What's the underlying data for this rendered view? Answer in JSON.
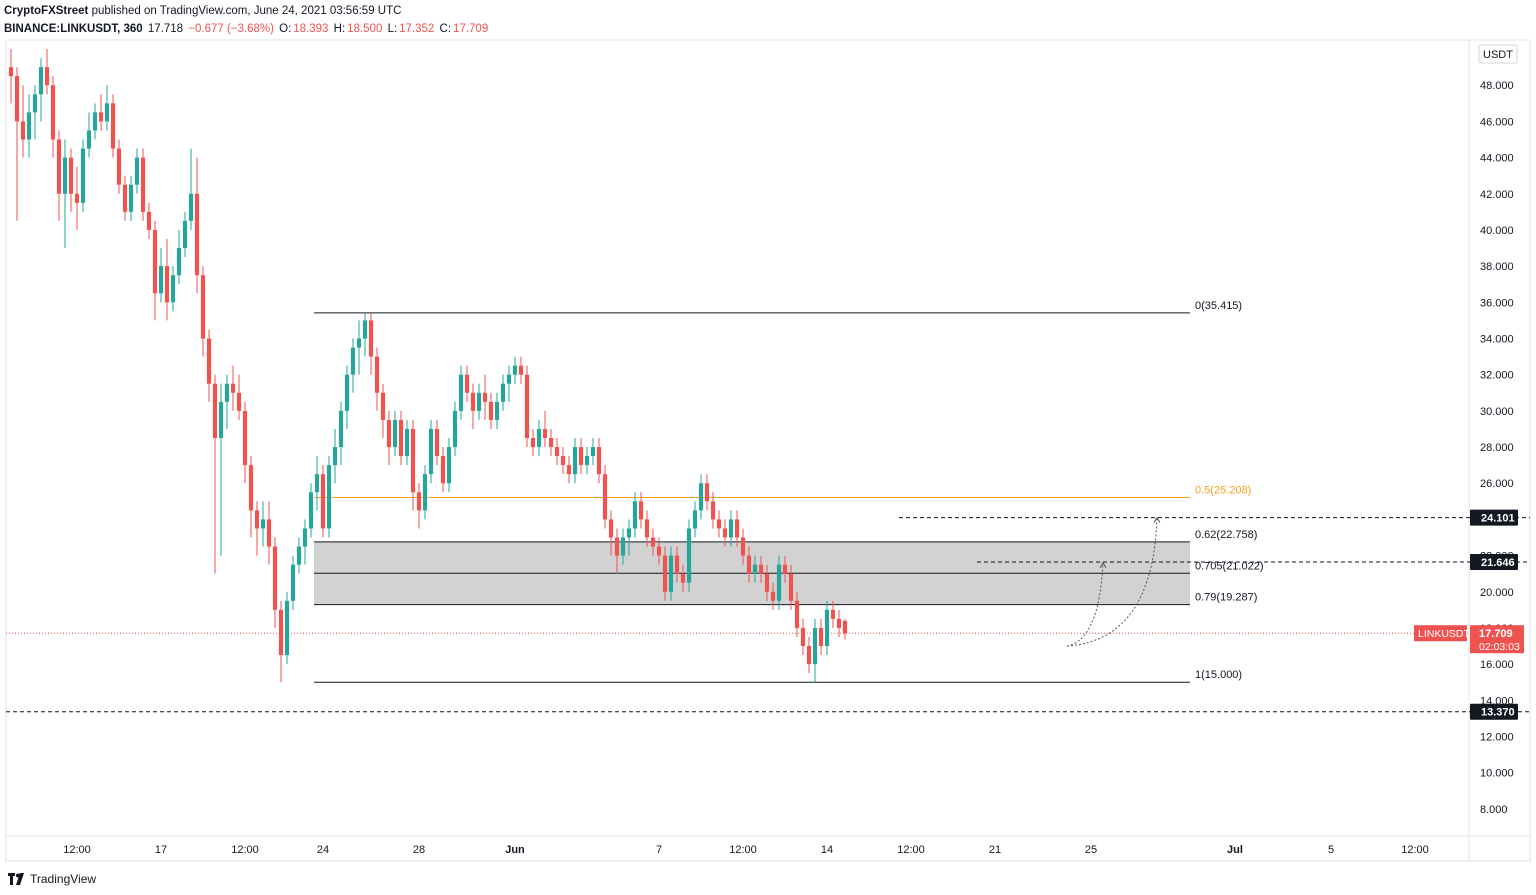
{
  "header": {
    "author": "CryptoFXStreet",
    "published": "published on TradingView.com, June 24, 2021 03:56:59 UTC",
    "symbol": "BINANCE:LINKUSDT, 360",
    "price": "17.718",
    "change": "−0.677 (−3.68%)",
    "open_label": "O:",
    "open": "18.393",
    "high_label": "H:",
    "high": "18.500",
    "low_label": "L:",
    "low": "17.352",
    "close_label": "C:",
    "close": "17.709"
  },
  "footer": {
    "brand": "TradingView",
    "logo_icon": "tradingview-logo-icon"
  },
  "colors": {
    "up": "#26a69a",
    "down": "#ef5350",
    "fib_orange": "#f7a21b",
    "zone_fill": "#d0d0d0",
    "line": "#131722",
    "tag_bg": "#131722",
    "last_tag": "#ef5350"
  },
  "chart_data": {
    "type": "candlestick",
    "title": "",
    "currency": "USDT",
    "ylim": [
      6.5,
      50.5
    ],
    "y_ticks": [
      "8.000",
      "10.000",
      "12.000",
      "14.000",
      "16.000",
      "18.000",
      "20.000",
      "22.000",
      "24.000",
      "26.000",
      "28.000",
      "30.000",
      "32.000",
      "34.000",
      "36.000",
      "38.000",
      "40.000",
      "42.000",
      "44.000",
      "46.000",
      "48.000"
    ],
    "x_ticks": [
      {
        "i": 11,
        "label": "12:00"
      },
      {
        "i": 25,
        "label": "17"
      },
      {
        "i": 39,
        "label": "12:00"
      },
      {
        "i": 52,
        "label": "24"
      },
      {
        "i": 68,
        "label": "28"
      },
      {
        "i": 84,
        "label": "Jun"
      },
      {
        "i": 108,
        "label": "7"
      },
      {
        "i": 122,
        "label": "12:00"
      },
      {
        "i": 136,
        "label": "14"
      },
      {
        "i": 150,
        "label": "12:00"
      },
      {
        "i": 164,
        "label": "21"
      },
      {
        "i": 180,
        "label": "25"
      },
      {
        "i": 204,
        "label": "Jul"
      },
      {
        "i": 220,
        "label": "5"
      },
      {
        "i": 234,
        "label": "12:00"
      }
    ],
    "candles": [
      [
        49.0,
        50.0,
        47.0,
        48.5
      ],
      [
        48.5,
        49.0,
        40.5,
        46.0
      ],
      [
        46.0,
        48.0,
        44.0,
        45.0
      ],
      [
        45.0,
        47.5,
        44.0,
        46.5
      ],
      [
        46.5,
        48.0,
        45.0,
        47.5
      ],
      [
        47.5,
        49.5,
        46.0,
        49.0
      ],
      [
        49.0,
        50.0,
        47.5,
        48.0
      ],
      [
        48.0,
        48.5,
        44.0,
        45.0
      ],
      [
        45.0,
        45.5,
        40.5,
        42.0
      ],
      [
        42.0,
        45.0,
        39.0,
        44.0
      ],
      [
        44.0,
        44.5,
        41.0,
        42.0
      ],
      [
        42.0,
        43.5,
        40.0,
        41.5
      ],
      [
        41.5,
        45.0,
        41.0,
        44.5
      ],
      [
        44.5,
        46.5,
        44.0,
        45.5
      ],
      [
        45.5,
        47.0,
        45.0,
        46.5
      ],
      [
        46.5,
        47.5,
        45.5,
        46.0
      ],
      [
        46.0,
        48.0,
        45.5,
        47.0
      ],
      [
        47.0,
        47.5,
        44.0,
        44.5
      ],
      [
        44.5,
        45.0,
        42.0,
        42.5
      ],
      [
        42.5,
        43.0,
        40.5,
        41.0
      ],
      [
        41.0,
        43.0,
        40.5,
        42.5
      ],
      [
        42.5,
        44.5,
        42.0,
        44.0
      ],
      [
        44.0,
        44.5,
        40.5,
        41.0
      ],
      [
        41.0,
        41.5,
        39.5,
        40.0
      ],
      [
        40.0,
        40.5,
        35.0,
        36.5
      ],
      [
        36.5,
        39.0,
        36.0,
        38.0
      ],
      [
        38.0,
        39.5,
        35.0,
        36.0
      ],
      [
        36.0,
        38.0,
        35.5,
        37.5
      ],
      [
        37.5,
        40.0,
        37.0,
        39.0
      ],
      [
        39.0,
        41.0,
        38.5,
        40.5
      ],
      [
        40.5,
        44.5,
        40.0,
        42.0
      ],
      [
        42.0,
        44.0,
        36.5,
        37.5
      ],
      [
        37.5,
        38.0,
        33.0,
        34.0
      ],
      [
        34.0,
        34.5,
        30.5,
        31.5
      ],
      [
        31.5,
        32.0,
        21.0,
        28.5
      ],
      [
        28.5,
        31.5,
        22.0,
        30.5
      ],
      [
        30.5,
        32.0,
        29.0,
        31.5
      ],
      [
        31.5,
        32.5,
        30.0,
        31.0
      ],
      [
        31.0,
        32.0,
        29.5,
        30.0
      ],
      [
        30.0,
        30.5,
        26.0,
        27.0
      ],
      [
        27.0,
        27.5,
        23.0,
        24.5
      ],
      [
        24.5,
        25.0,
        22.0,
        23.5
      ],
      [
        23.5,
        25.0,
        22.5,
        24.0
      ],
      [
        24.0,
        25.0,
        21.5,
        22.5
      ],
      [
        22.5,
        23.0,
        18.0,
        19.0
      ],
      [
        19.0,
        19.5,
        15.0,
        16.5
      ],
      [
        16.5,
        20.0,
        16.0,
        19.5
      ],
      [
        19.5,
        22.0,
        19.0,
        21.5
      ],
      [
        21.5,
        23.0,
        21.0,
        22.5
      ],
      [
        22.5,
        24.0,
        21.5,
        23.5
      ],
      [
        23.5,
        26.0,
        23.0,
        25.5
      ],
      [
        25.5,
        27.5,
        24.5,
        26.5
      ],
      [
        26.5,
        27.0,
        23.0,
        23.5
      ],
      [
        23.5,
        27.5,
        23.0,
        27.0
      ],
      [
        27.0,
        29.0,
        26.0,
        28.0
      ],
      [
        28.0,
        30.5,
        27.0,
        30.0
      ],
      [
        30.0,
        32.5,
        29.0,
        32.0
      ],
      [
        32.0,
        34.0,
        31.0,
        33.5
      ],
      [
        33.5,
        35.0,
        32.0,
        34.0
      ],
      [
        34.0,
        35.4,
        33.0,
        35.0
      ],
      [
        35.0,
        35.4,
        32.0,
        33.0
      ],
      [
        33.0,
        33.5,
        30.0,
        31.0
      ],
      [
        31.0,
        31.5,
        28.5,
        29.5
      ],
      [
        29.5,
        30.0,
        27.0,
        28.0
      ],
      [
        28.0,
        30.0,
        27.5,
        29.5
      ],
      [
        29.5,
        30.0,
        27.0,
        27.5
      ],
      [
        27.5,
        29.5,
        27.0,
        29.0
      ],
      [
        29.0,
        29.5,
        24.5,
        25.5
      ],
      [
        25.5,
        26.0,
        23.5,
        24.5
      ],
      [
        24.5,
        27.0,
        24.0,
        26.5
      ],
      [
        26.5,
        29.5,
        26.0,
        29.0
      ],
      [
        29.0,
        29.5,
        27.0,
        27.5
      ],
      [
        27.5,
        28.0,
        25.5,
        26.0
      ],
      [
        26.0,
        28.5,
        25.5,
        28.0
      ],
      [
        28.0,
        30.5,
        27.5,
        30.0
      ],
      [
        30.0,
        32.5,
        29.5,
        32.0
      ],
      [
        32.0,
        32.5,
        30.5,
        31.0
      ],
      [
        31.0,
        31.5,
        29.0,
        30.0
      ],
      [
        30.0,
        31.5,
        29.5,
        31.0
      ],
      [
        31.0,
        32.0,
        29.5,
        30.5
      ],
      [
        30.5,
        31.0,
        29.0,
        29.5
      ],
      [
        29.5,
        31.0,
        29.0,
        30.5
      ],
      [
        30.5,
        32.0,
        30.0,
        31.5
      ],
      [
        31.5,
        32.5,
        30.5,
        32.0
      ],
      [
        32.0,
        33.0,
        31.5,
        32.5
      ],
      [
        32.5,
        33.0,
        31.5,
        32.0
      ],
      [
        32.0,
        32.5,
        28.0,
        28.5
      ],
      [
        28.5,
        29.0,
        27.5,
        28.0
      ],
      [
        28.0,
        29.5,
        27.5,
        29.0
      ],
      [
        29.0,
        30.0,
        28.0,
        28.5
      ],
      [
        28.5,
        29.0,
        27.5,
        28.0
      ],
      [
        28.0,
        28.5,
        27.0,
        27.5
      ],
      [
        27.5,
        28.0,
        26.5,
        27.0
      ],
      [
        27.0,
        27.5,
        26.0,
        26.5
      ],
      [
        26.5,
        28.5,
        26.0,
        28.0
      ],
      [
        28.0,
        28.5,
        26.5,
        27.0
      ],
      [
        27.0,
        28.0,
        26.5,
        27.5
      ],
      [
        27.5,
        28.5,
        27.0,
        28.0
      ],
      [
        28.0,
        28.5,
        26.0,
        26.5
      ],
      [
        26.5,
        27.0,
        23.5,
        24.0
      ],
      [
        24.0,
        24.5,
        22.0,
        23.0
      ],
      [
        23.0,
        23.5,
        21.0,
        22.0
      ],
      [
        22.0,
        23.5,
        21.5,
        23.0
      ],
      [
        23.0,
        24.0,
        22.0,
        23.5
      ],
      [
        23.5,
        25.5,
        23.0,
        25.0
      ],
      [
        25.0,
        25.5,
        23.5,
        24.0
      ],
      [
        24.0,
        24.5,
        22.5,
        23.0
      ],
      [
        23.0,
        23.5,
        22.0,
        22.5
      ],
      [
        22.5,
        23.0,
        21.5,
        22.0
      ],
      [
        22.0,
        22.5,
        19.5,
        20.0
      ],
      [
        20.0,
        22.5,
        19.5,
        22.0
      ],
      [
        22.0,
        22.5,
        20.5,
        21.0
      ],
      [
        21.0,
        21.5,
        20.0,
        20.5
      ],
      [
        20.5,
        24.0,
        20.0,
        23.5
      ],
      [
        23.5,
        25.0,
        23.0,
        24.5
      ],
      [
        24.5,
        26.5,
        24.0,
        26.0
      ],
      [
        26.0,
        26.5,
        24.5,
        25.0
      ],
      [
        25.0,
        25.5,
        23.5,
        24.0
      ],
      [
        24.0,
        24.5,
        23.0,
        23.5
      ],
      [
        23.5,
        24.0,
        22.5,
        23.0
      ],
      [
        23.0,
        24.5,
        22.5,
        24.0
      ],
      [
        24.0,
        24.5,
        22.5,
        23.0
      ],
      [
        23.0,
        23.5,
        21.5,
        22.0
      ],
      [
        22.0,
        22.5,
        20.5,
        21.0
      ],
      [
        21.0,
        22.0,
        20.5,
        21.5
      ],
      [
        21.5,
        22.0,
        20.5,
        21.0
      ],
      [
        21.0,
        21.5,
        19.5,
        20.0
      ],
      [
        20.0,
        20.5,
        19.0,
        19.5
      ],
      [
        19.5,
        22.0,
        19.0,
        21.5
      ],
      [
        21.5,
        22.0,
        20.5,
        21.0
      ],
      [
        21.0,
        21.5,
        19.0,
        19.5
      ],
      [
        19.5,
        20.0,
        17.5,
        18.0
      ],
      [
        18.0,
        18.5,
        16.5,
        17.0
      ],
      [
        17.0,
        17.5,
        15.5,
        16.0
      ],
      [
        16.0,
        18.5,
        15.0,
        18.0
      ],
      [
        18.0,
        18.5,
        16.5,
        17.0
      ],
      [
        17.0,
        19.5,
        16.5,
        19.0
      ],
      [
        19.0,
        19.5,
        18.0,
        18.5
      ],
      [
        18.5,
        19.0,
        17.5,
        18.0
      ],
      [
        18.393,
        18.5,
        17.352,
        17.709
      ]
    ],
    "hlines": [
      {
        "label": "0(35.415)",
        "value": 35.415,
        "from_i": 51,
        "kind": "fib"
      },
      {
        "label": "0.5(25.208)",
        "value": 25.208,
        "from_i": 51,
        "kind": "fib-orange"
      },
      {
        "label": "0.62(22.758)",
        "value": 22.758,
        "from_i": 51,
        "kind": "fib"
      },
      {
        "label": "0.705(21.022)",
        "value": 21.022,
        "from_i": 51,
        "kind": "fib"
      },
      {
        "label": "0.79(19.287)",
        "value": 19.287,
        "from_i": 51,
        "kind": "fib"
      },
      {
        "label": "1(15.000)",
        "value": 15.0,
        "from_i": 51,
        "kind": "fib"
      }
    ],
    "zone": {
      "top": 22.758,
      "bottom": 19.287,
      "from_i": 51
    },
    "levels": [
      {
        "label": "24.101",
        "value": 24.101,
        "from_i": 148
      },
      {
        "label": "21.646",
        "value": 21.646,
        "from_i": 161
      },
      {
        "label": "13.370",
        "value": 13.37,
        "from_i": 0
      }
    ],
    "projections": [
      {
        "from": [
          176,
          17.0
        ],
        "to": [
          182,
          21.6
        ]
      },
      {
        "from": [
          176,
          17.0
        ],
        "to": [
          191,
          24.1
        ]
      }
    ],
    "last_price": {
      "symbol": "LINKUSDT",
      "value": 17.709,
      "label": "17.709",
      "countdown": "02:03:03"
    }
  }
}
